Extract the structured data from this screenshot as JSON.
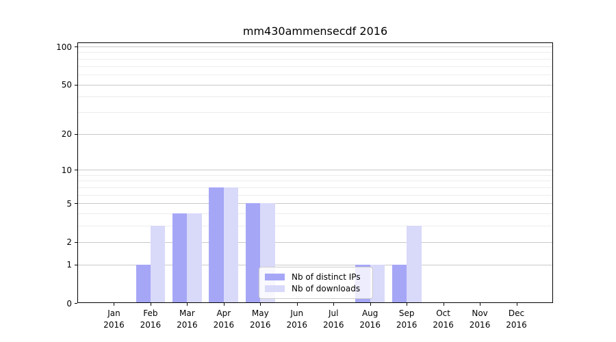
{
  "title": "mm430ammensecdf 2016",
  "chart_data": {
    "type": "bar",
    "title": "mm430ammensecdf 2016",
    "xlabel": "",
    "ylabel": "",
    "year": "2016",
    "categories": [
      "Jan",
      "Feb",
      "Mar",
      "Apr",
      "May",
      "Jun",
      "Jul",
      "Aug",
      "Sep",
      "Oct",
      "Nov",
      "Dec"
    ],
    "series": [
      {
        "name": "Nb of distinct IPs",
        "color": "#a6a6f7",
        "values": [
          0,
          1,
          4,
          7,
          5,
          0,
          0,
          1,
          1,
          0,
          0,
          0
        ]
      },
      {
        "name": "Nb of downloads",
        "color": "#d9d9fa",
        "values": [
          0,
          3,
          4,
          7,
          5,
          0,
          0,
          1,
          3,
          0,
          0,
          0
        ]
      }
    ],
    "y_scale": "log1p",
    "y_major_ticks": [
      0,
      1,
      2,
      5,
      10,
      20,
      50,
      100
    ],
    "y_minor_gridlines": [
      3,
      4,
      6,
      7,
      8,
      9,
      30,
      40,
      60,
      70,
      80,
      90
    ],
    "ylim": [
      0,
      108
    ],
    "grid": true,
    "legend": {
      "position": "lower-center-inside"
    },
    "colors": {
      "major_grid": "#c8c8c8",
      "minor_grid": "#ececec",
      "spine": "#000000",
      "text": "#000000",
      "background": "#ffffff"
    }
  }
}
